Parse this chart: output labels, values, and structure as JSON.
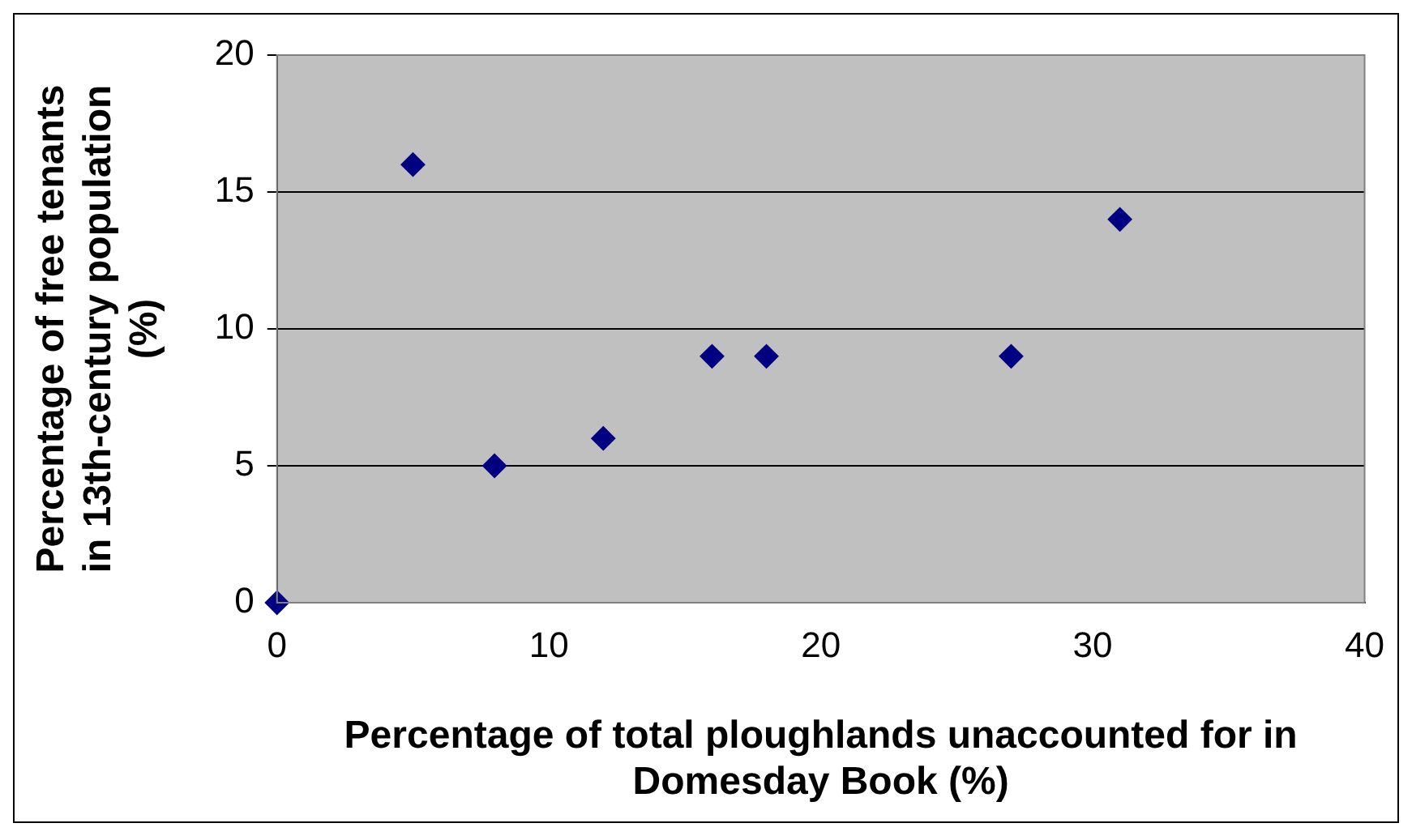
{
  "chart_data": {
    "type": "scatter",
    "xlabel": "Percentage of total ploughlands unaccounted for in Domesday Book (%)",
    "ylabel": "Percentage of free tenants in 13th-century population (%)",
    "series": [
      {
        "color": "#000080",
        "x": [
          0,
          5,
          8,
          12,
          16,
          18,
          27,
          31
        ],
        "values": [
          0,
          16,
          5,
          6,
          9,
          9,
          9,
          14
        ]
      }
    ],
    "xlim": [
      0,
      40
    ],
    "xticks": [
      0,
      10,
      20,
      30,
      40
    ],
    "ylim": [
      0,
      20
    ],
    "yticks": [
      0,
      5,
      10,
      15,
      20
    ],
    "grid": "y",
    "marker": "diamond",
    "legend": false
  }
}
